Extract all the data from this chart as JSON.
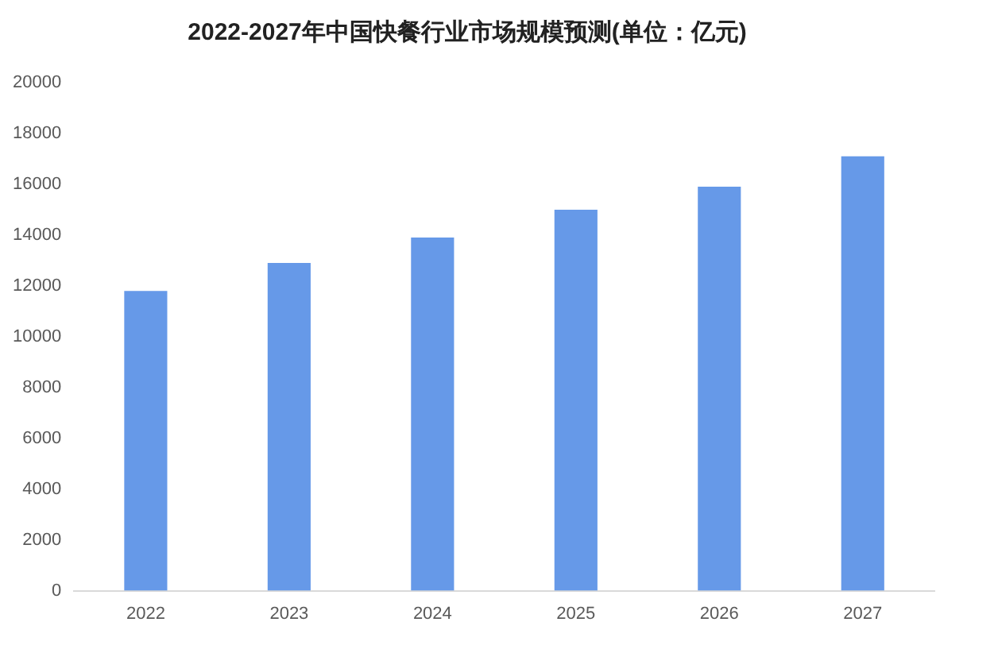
{
  "chart_data": {
    "type": "bar",
    "title": "2022-2027年中国快餐行业市场规模预测(单位：亿元)",
    "categories": [
      "2022",
      "2023",
      "2024",
      "2025",
      "2026",
      "2027"
    ],
    "values": [
      11800,
      12900,
      13900,
      15000,
      15900,
      17100
    ],
    "color": "#6699e8",
    "ylim": [
      0,
      20000
    ],
    "yticks": [
      0,
      2000,
      4000,
      6000,
      8000,
      10000,
      12000,
      14000,
      16000,
      18000,
      20000
    ],
    "grid": false
  }
}
